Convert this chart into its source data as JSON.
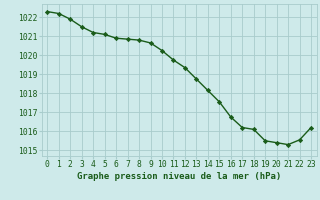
{
  "x": [
    0,
    1,
    2,
    3,
    4,
    5,
    6,
    7,
    8,
    9,
    10,
    11,
    12,
    13,
    14,
    15,
    16,
    17,
    18,
    19,
    20,
    21,
    22,
    23
  ],
  "y": [
    1022.3,
    1022.2,
    1021.9,
    1021.5,
    1021.2,
    1021.1,
    1020.9,
    1020.85,
    1020.8,
    1020.65,
    1020.25,
    1019.75,
    1019.35,
    1018.75,
    1018.15,
    1017.55,
    1016.75,
    1016.2,
    1016.1,
    1015.5,
    1015.4,
    1015.3,
    1015.55,
    1016.2
  ],
  "ylim": [
    1014.7,
    1022.7
  ],
  "yticks": [
    1015,
    1016,
    1017,
    1018,
    1019,
    1020,
    1021,
    1022
  ],
  "xticks": [
    0,
    1,
    2,
    3,
    4,
    5,
    6,
    7,
    8,
    9,
    10,
    11,
    12,
    13,
    14,
    15,
    16,
    17,
    18,
    19,
    20,
    21,
    22,
    23
  ],
  "xlabel": "Graphe pression niveau de la mer (hPa)",
  "line_color": "#1a5c1a",
  "marker": "D",
  "marker_size": 2.2,
  "bg_color": "#ceeaea",
  "grid_color": "#a8cccc",
  "tick_label_color": "#1a5c1a",
  "xlabel_color": "#1a5c1a",
  "xlabel_fontsize": 6.5,
  "tick_fontsize": 5.8,
  "linewidth": 1.0
}
